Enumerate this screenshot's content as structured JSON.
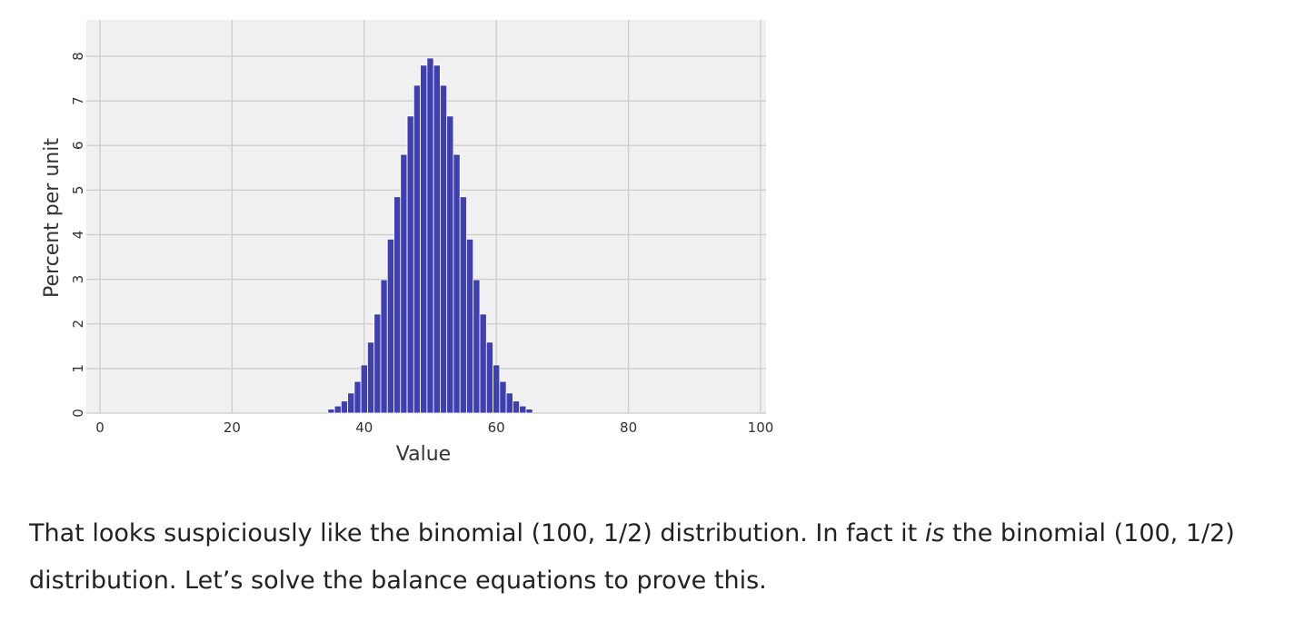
{
  "chart_data": {
    "type": "bar",
    "title": "",
    "xlabel": "Value",
    "ylabel": "Percent per unit",
    "xlim": [
      0,
      100
    ],
    "ylim": [
      0,
      8.3
    ],
    "xticks": [
      0,
      20,
      40,
      60,
      80,
      100
    ],
    "yticks": [
      0,
      1,
      2,
      3,
      4,
      5,
      6,
      7,
      8
    ],
    "grid": true,
    "bar_color": "#3f3fb0",
    "background": "#f0f0f0",
    "x": [
      35,
      36,
      37,
      38,
      39,
      40,
      41,
      42,
      43,
      44,
      45,
      46,
      47,
      48,
      49,
      50,
      51,
      52,
      53,
      54,
      55,
      56,
      57,
      58,
      59,
      60,
      61,
      62,
      63,
      64,
      65
    ],
    "values": [
      0.09,
      0.16,
      0.27,
      0.45,
      0.71,
      1.08,
      1.59,
      2.22,
      2.99,
      3.9,
      4.85,
      5.8,
      6.66,
      7.35,
      7.8,
      7.96,
      7.8,
      7.35,
      6.66,
      5.8,
      4.85,
      3.9,
      2.99,
      2.22,
      1.59,
      1.08,
      0.71,
      0.45,
      0.27,
      0.16,
      0.09
    ]
  },
  "paragraph": {
    "part1": "That looks suspiciously like the binomial (100, 1/2) distribution. In fact it ",
    "emph": "is",
    "part2": " the binomial (100, 1/2) distribution. Let’s solve the balance equations to prove this."
  }
}
